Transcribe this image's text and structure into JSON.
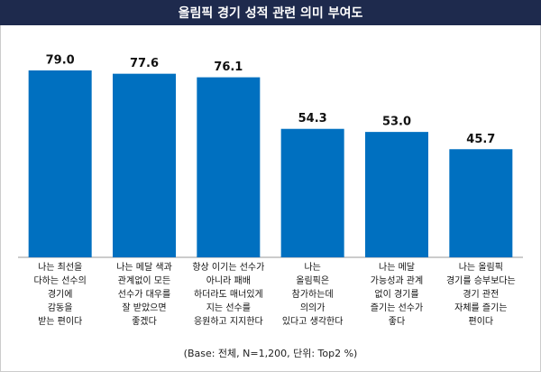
{
  "chart_data": {
    "type": "bar",
    "title": "올림픽 경기 성적 관련 의미 부여도",
    "categories": [
      "나는 최선을\n다하는 선수의\n경기에\n감동을\n받는 편이다",
      "나는 메달 색과\n관계없이 모든\n선수가 대우를\n잘 받았으면\n좋겠다",
      "항상 이기는 선수가\n아니라 패배\n하더라도 매너있게\n지는 선수를\n응원하고 지지한다",
      "나는\n올림픽은\n참가하는데\n의의가\n있다고 생각한다",
      "나는 메달\n가능성과 관계\n없이 경기를\n즐기는 선수가\n좋다",
      "나는 올림픽\n경기를 승부보다는\n경기 관전\n자체를 즐기는\n편이다"
    ],
    "values": [
      79.0,
      77.6,
      76.1,
      54.3,
      53.0,
      45.7
    ],
    "value_labels": [
      "79.0",
      "77.6",
      "76.1",
      "54.3",
      "53.0",
      "45.7"
    ],
    "color": "#0070c0",
    "note": "(Base: 전체, N=1,200, 단위: Top2 %)"
  }
}
